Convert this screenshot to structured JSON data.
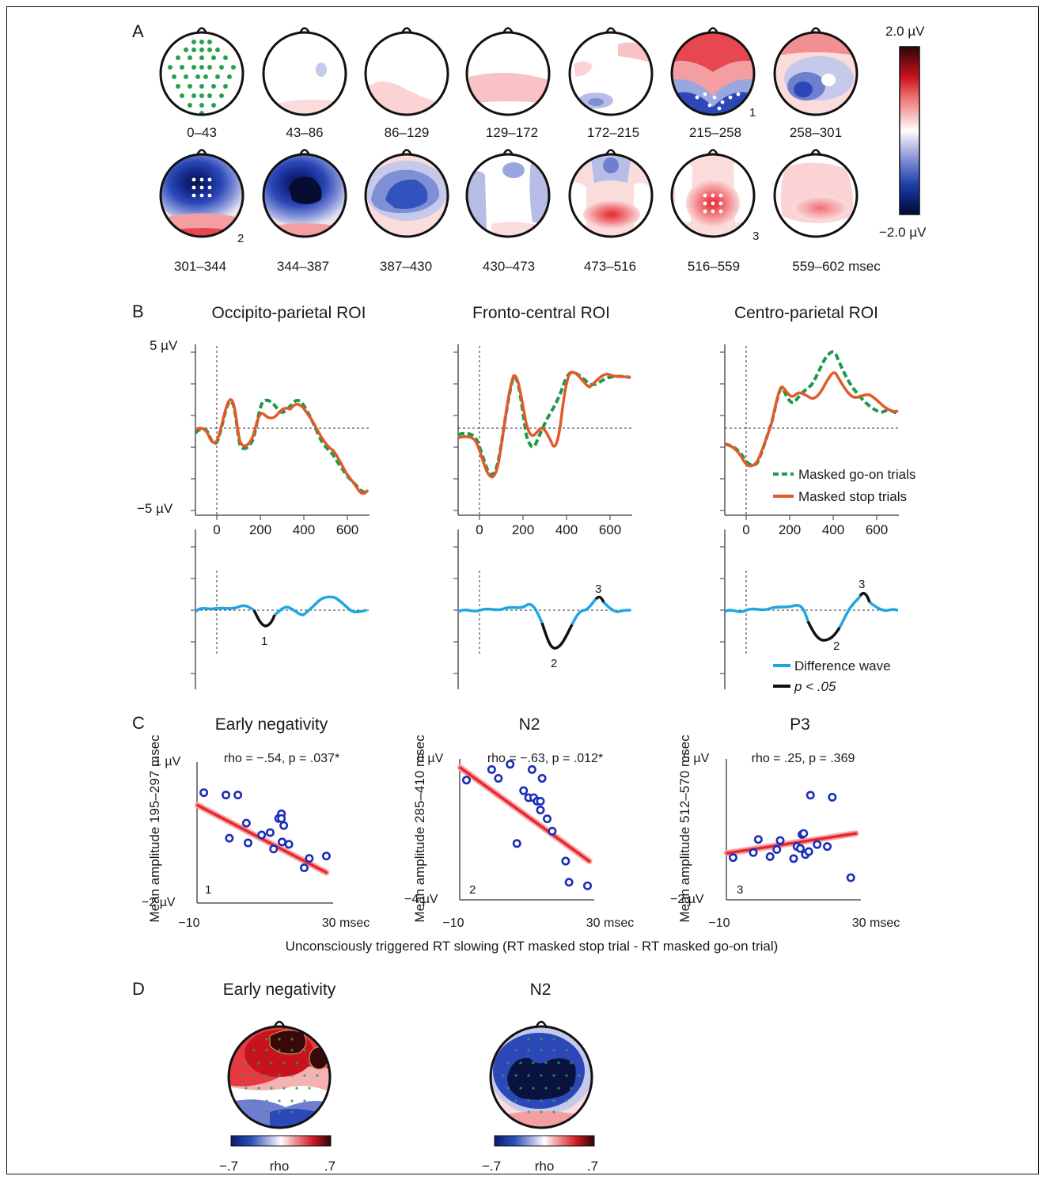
{
  "panels": {
    "A": {
      "label": "A",
      "row1_labels": [
        "0–43",
        "43–86",
        "86–129",
        "129–172",
        "172–215",
        "215–258",
        "258–301"
      ],
      "row2_labels": [
        "301–344",
        "344–387",
        "387–430",
        "430–473",
        "473–516",
        "516–559",
        "559–602 msec"
      ],
      "markers": [
        "1",
        "2",
        "3"
      ],
      "colorbar_top": "2.0 µV",
      "colorbar_bottom": "−2.0 µV"
    },
    "B": {
      "label": "B",
      "titles": [
        "Occipito-parietal ROI",
        "Fronto-central ROI",
        "Centro-parietal ROI"
      ],
      "y_top_label": "5 µV",
      "y_bottom_label": "−5 µV",
      "x_ticks": [
        "0",
        "200",
        "400",
        "600"
      ],
      "legend_top": [
        "Masked go-on trials",
        "Masked stop trials"
      ],
      "legend_bottom": [
        "Difference wave",
        "p < .05"
      ],
      "diff_markers": [
        "1",
        "2",
        "3",
        "3",
        "2"
      ]
    },
    "C": {
      "label": "C",
      "x_label": "Unconsciously triggered RT slowing (RT masked stop trial - RT masked go-on trial)"
    },
    "D": {
      "label": "D",
      "titles": [
        "Early negativity",
        "N2"
      ],
      "scale_labels": [
        "−.7",
        "rho",
        ".7"
      ]
    }
  },
  "chart_data": [
    {
      "type": "scatter",
      "title": "Early negativity",
      "stat": "rho = −.54, p = .037*",
      "ylabel": "Mean amplitude 195–297 msec",
      "ylim_labels": [
        "1 µV",
        "−2 µV"
      ],
      "xlim_labels": [
        "−10",
        "30 msec"
      ],
      "panel_number": "1",
      "xlim": [
        -10,
        30
      ],
      "ylim": [
        -2,
        1
      ],
      "points": [
        [
          -8,
          0.35
        ],
        [
          -1.5,
          0.3
        ],
        [
          2,
          0.3
        ],
        [
          -0.5,
          -0.62
        ],
        [
          4.5,
          -0.3
        ],
        [
          9,
          -0.55
        ],
        [
          11.5,
          -0.5
        ],
        [
          12.5,
          -0.85
        ],
        [
          14,
          -0.2
        ],
        [
          14.8,
          -0.1
        ],
        [
          14.8,
          -0.2
        ],
        [
          15,
          -0.7
        ],
        [
          15.5,
          -0.35
        ],
        [
          17,
          -0.75
        ],
        [
          21.5,
          -1.25
        ],
        [
          23,
          -1.05
        ],
        [
          28,
          -1.0
        ],
        [
          5,
          -0.72
        ]
      ],
      "regression": [
        [
          -9.8,
          0.08
        ],
        [
          28,
          -1.35
        ]
      ]
    },
    {
      "type": "scatter",
      "title": "N2",
      "stat": "rho = −.63, p = .012*",
      "ylabel": "Mean amplitude 285–410 msec",
      "ylim_labels": [
        "0 µV",
        "−4 µV"
      ],
      "xlim_labels": [
        "−10",
        "30 msec"
      ],
      "panel_number": "2",
      "xlim": [
        -10,
        30
      ],
      "ylim": [
        -4,
        0
      ],
      "points": [
        [
          -8,
          -0.6
        ],
        [
          -0.5,
          -0.3
        ],
        [
          1.5,
          -0.55
        ],
        [
          5,
          -0.15
        ],
        [
          7,
          -2.4
        ],
        [
          9,
          -0.9
        ],
        [
          10.5,
          -1.1
        ],
        [
          11.5,
          -0.3
        ],
        [
          12,
          -1.1
        ],
        [
          13,
          -1.2
        ],
        [
          14,
          -1.2
        ],
        [
          14.5,
          -0.55
        ],
        [
          16,
          -1.7
        ],
        [
          17.5,
          -2.05
        ],
        [
          21.5,
          -2.9
        ],
        [
          22.5,
          -3.5
        ],
        [
          28,
          -3.6
        ],
        [
          14,
          -1.45
        ]
      ],
      "regression": [
        [
          -9.8,
          -0.25
        ],
        [
          28.5,
          -2.9
        ]
      ]
    },
    {
      "type": "scatter",
      "title": "P3",
      "stat": "rho = .25, p = .369",
      "ylabel": "Mean amplitude 512–570 msec",
      "ylim_labels": [
        "5 µV",
        "−2 µV"
      ],
      "xlim_labels": [
        "−10",
        "30 msec"
      ],
      "panel_number": "3",
      "xlim": [
        -10,
        30
      ],
      "ylim": [
        -2,
        5
      ],
      "points": [
        [
          -8,
          0.1
        ],
        [
          -2,
          0.35
        ],
        [
          -0.5,
          1.0
        ],
        [
          3,
          0.15
        ],
        [
          6,
          0.95
        ],
        [
          10,
          0.05
        ],
        [
          11,
          0.65
        ],
        [
          12,
          0.55
        ],
        [
          12.5,
          1.25
        ],
        [
          13,
          1.3
        ],
        [
          13.5,
          0.25
        ],
        [
          14.5,
          0.4
        ],
        [
          15,
          3.2
        ],
        [
          17,
          0.75
        ],
        [
          20,
          0.65
        ],
        [
          21.5,
          3.1
        ],
        [
          27,
          -0.9
        ],
        [
          5,
          0.5
        ]
      ],
      "regression": [
        [
          -9.8,
          0.32
        ],
        [
          28.5,
          1.3
        ]
      ]
    }
  ]
}
